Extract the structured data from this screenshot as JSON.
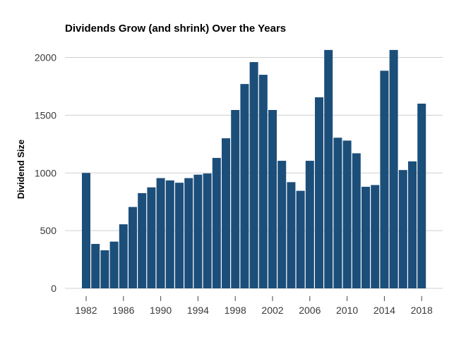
{
  "chart_data": {
    "type": "bar",
    "title": "Dividends Grow (and shrink) Over the Years",
    "xlabel": "",
    "ylabel": "Dividend Size",
    "categories": [
      1982,
      1983,
      1984,
      1985,
      1986,
      1987,
      1988,
      1989,
      1990,
      1991,
      1992,
      1993,
      1994,
      1995,
      1996,
      1997,
      1998,
      1999,
      2000,
      2001,
      2002,
      2003,
      2004,
      2005,
      2006,
      2007,
      2008,
      2009,
      2010,
      2011,
      2012,
      2013,
      2014,
      2015,
      2016,
      2017,
      2018
    ],
    "values": [
      1000,
      385,
      330,
      405,
      555,
      705,
      825,
      875,
      955,
      935,
      915,
      955,
      985,
      995,
      1130,
      1300,
      1545,
      1770,
      1960,
      1850,
      1545,
      1105,
      920,
      845,
      1105,
      1655,
      2065,
      1305,
      1280,
      1170,
      880,
      895,
      1885,
      2065,
      1025,
      1100,
      1600
    ],
    "ylim": [
      0,
      2065
    ],
    "yticks": [
      0,
      500,
      1000,
      1500,
      2000
    ],
    "xticks": [
      1982,
      1986,
      1990,
      1994,
      1998,
      2002,
      2006,
      2010,
      2014,
      2018
    ],
    "grid": "horizontal",
    "legend": "none",
    "bar_color": "#1c4e7a"
  }
}
